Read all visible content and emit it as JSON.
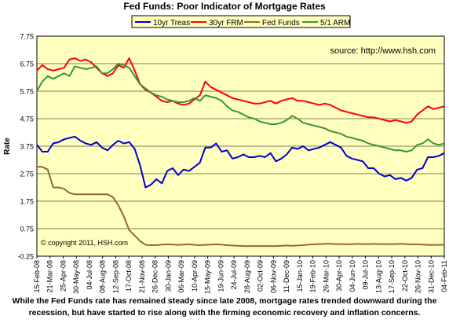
{
  "chart_data": {
    "type": "line",
    "title": "Fed Funds: Poor Indicator of Mortgage Rates",
    "ylabel": "Rate",
    "xlabel": "",
    "ylim": [
      -0.25,
      7.75
    ],
    "y_ticks": [
      7.75,
      6.75,
      5.75,
      4.75,
      3.75,
      2.75,
      1.75,
      0.75,
      -0.25
    ],
    "y_tick_labels": [
      "7.75",
      "6.75",
      "5.75",
      "4.75",
      "3.75",
      "2.75",
      "1.75",
      "0.75",
      "-0.25"
    ],
    "x_tick_labels": [
      "15-Feb-08",
      "21-Mar-08",
      "25-Apr-08",
      "30-May-08",
      "04-Jul-08",
      "08-Aug-08",
      "12-Sep-08",
      "17-Oct-08",
      "21-Nov-08",
      "26-Dec-08",
      "30-Jan-09",
      "06-Mar-09",
      "10-Apr-09",
      "15-May-09",
      "19-Jun-09",
      "24-Jul-09",
      "28-Aug-09",
      "02-Oct-09",
      "06-Nov-09",
      "11-Dec-09",
      "15-Jan-10",
      "19-Feb-10",
      "26-Mar-10",
      "30-Apr-10",
      "04-Jun-10",
      "09-Jul-10",
      "13-Aug-10",
      "17-Sep-10",
      "22-Oct-10",
      "26-Nov-10",
      "31-Dec-10",
      "04-Feb-11"
    ],
    "grid": true,
    "legend_position": "top",
    "annotations": [
      "source: http://www.hsh.com",
      "© copyright 2011, HSH.com"
    ],
    "series": [
      {
        "name": "10yr Treas",
        "color": "#0000cc",
        "values": [
          3.8,
          3.55,
          3.55,
          3.85,
          3.9,
          4.0,
          4.05,
          4.1,
          3.95,
          3.85,
          3.8,
          3.9,
          3.7,
          3.6,
          3.8,
          3.95,
          3.85,
          3.9,
          3.65,
          3.05,
          2.25,
          2.35,
          2.55,
          2.4,
          2.85,
          2.95,
          2.7,
          2.9,
          2.85,
          3.0,
          3.15,
          3.7,
          3.7,
          3.85,
          3.55,
          3.6,
          3.3,
          3.35,
          3.45,
          3.35,
          3.35,
          3.4,
          3.35,
          3.5,
          3.2,
          3.3,
          3.45,
          3.7,
          3.65,
          3.75,
          3.6,
          3.65,
          3.7,
          3.8,
          3.9,
          3.8,
          3.7,
          3.4,
          3.3,
          3.25,
          3.2,
          2.95,
          2.95,
          2.75,
          2.65,
          2.7,
          2.55,
          2.6,
          2.5,
          2.6,
          2.9,
          2.95,
          3.35,
          3.35,
          3.4,
          3.5
        ]
      },
      {
        "name": "30yr FRM",
        "color": "#ff0000",
        "values": [
          6.5,
          6.7,
          6.55,
          6.5,
          6.55,
          6.6,
          6.9,
          6.95,
          6.85,
          6.9,
          6.8,
          6.6,
          6.4,
          6.3,
          6.4,
          6.7,
          6.6,
          6.95,
          6.5,
          6.0,
          5.8,
          5.7,
          5.55,
          5.4,
          5.35,
          5.4,
          5.3,
          5.25,
          5.3,
          5.45,
          5.6,
          6.1,
          5.9,
          5.8,
          5.7,
          5.6,
          5.5,
          5.45,
          5.4,
          5.35,
          5.3,
          5.3,
          5.35,
          5.4,
          5.3,
          5.4,
          5.45,
          5.5,
          5.4,
          5.4,
          5.35,
          5.3,
          5.25,
          5.3,
          5.25,
          5.15,
          5.05,
          5.0,
          4.95,
          4.9,
          4.85,
          4.8,
          4.8,
          4.75,
          4.7,
          4.65,
          4.7,
          4.65,
          4.6,
          4.65,
          4.9,
          5.05,
          5.2,
          5.1,
          5.15,
          5.2
        ]
      },
      {
        "name": "Fed Funds",
        "color": "#996633",
        "values": [
          3.0,
          3.0,
          2.9,
          2.25,
          2.25,
          2.2,
          2.05,
          2.0,
          2.0,
          2.0,
          2.0,
          2.0,
          2.0,
          2.0,
          1.9,
          1.6,
          1.2,
          0.7,
          0.5,
          0.3,
          0.16,
          0.15,
          0.15,
          0.17,
          0.18,
          0.17,
          0.16,
          0.17,
          0.18,
          0.16,
          0.15,
          0.16,
          0.17,
          0.18,
          0.17,
          0.15,
          0.14,
          0.13,
          0.12,
          0.12,
          0.12,
          0.12,
          0.12,
          0.12,
          0.12,
          0.13,
          0.14,
          0.13,
          0.14,
          0.15,
          0.17,
          0.18,
          0.19,
          0.2,
          0.2,
          0.19,
          0.19,
          0.18,
          0.19,
          0.2,
          0.19,
          0.19,
          0.2,
          0.19,
          0.19,
          0.19,
          0.19,
          0.2,
          0.19,
          0.18,
          0.18,
          0.17,
          0.16,
          0.16,
          0.16,
          0.16
        ]
      },
      {
        "name": "5/1 ARM",
        "color": "#339933",
        "values": [
          5.75,
          6.1,
          6.3,
          6.2,
          6.3,
          6.4,
          6.3,
          6.65,
          6.6,
          6.55,
          6.6,
          6.65,
          6.4,
          6.4,
          6.55,
          6.75,
          6.7,
          6.6,
          6.3,
          6.0,
          5.85,
          5.7,
          5.6,
          5.55,
          5.45,
          5.4,
          5.35,
          5.35,
          5.4,
          5.5,
          5.4,
          5.6,
          5.55,
          5.5,
          5.4,
          5.2,
          5.05,
          5.0,
          4.9,
          4.8,
          4.75,
          4.65,
          4.6,
          4.55,
          4.55,
          4.6,
          4.7,
          4.85,
          4.75,
          4.6,
          4.55,
          4.5,
          4.45,
          4.4,
          4.3,
          4.25,
          4.2,
          4.1,
          4.05,
          4.0,
          3.95,
          3.85,
          3.8,
          3.75,
          3.7,
          3.65,
          3.6,
          3.6,
          3.55,
          3.6,
          3.8,
          3.85,
          4.0,
          3.85,
          3.8,
          3.85
        ]
      }
    ]
  },
  "caption": "While the Fed Funds rate has remained steady since late 2008, mortgage rates trended downward during the recession, but have started to rise along with the firming economic recovery and inflation concerns."
}
